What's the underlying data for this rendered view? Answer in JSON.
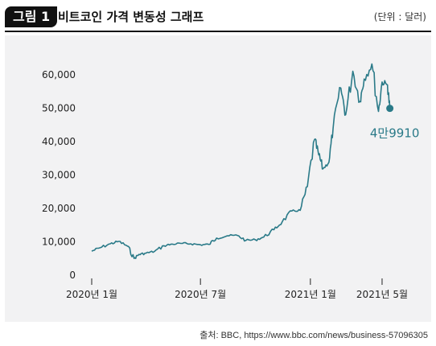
{
  "header": {
    "figure_label": "그림 1",
    "title": "비트코인 가격 변동성 그래프",
    "unit_note": "(단위 : 달러)"
  },
  "source": "출처: BBC, https://www.bbc.com/news/business-57096305",
  "colors": {
    "line": "#2a7a88",
    "panel": "#f2f2f3"
  },
  "chart_data": {
    "type": "line",
    "title": "비트코인 가격 변동성 그래프",
    "xlabel": "",
    "ylabel": "",
    "ylim": [
      0,
      65000
    ],
    "y_ticks": [
      0,
      10000,
      20000,
      30000,
      40000,
      50000,
      60000
    ],
    "y_tick_labels": [
      "0",
      "10,000",
      "20,000",
      "30,000",
      "40,000",
      "50,000",
      "60,000"
    ],
    "x_ticks": [
      {
        "x": "2020-01-01",
        "label": "2020년 1월"
      },
      {
        "x": "2020-07-01",
        "label": "2020년 7월"
      },
      {
        "x": "2021-01-01",
        "label": "2021년 1월"
      },
      {
        "x": "2021-05-01",
        "label": "2021년 5월"
      }
    ],
    "grid": false,
    "annotation": {
      "x": "2021-05-14",
      "y": 49910,
      "label": "4만9910"
    },
    "series": [
      {
        "name": "",
        "x": [
          "2020-01-01",
          "2020-01-15",
          "2020-02-01",
          "2020-02-15",
          "2020-03-01",
          "2020-03-12",
          "2020-03-20",
          "2020-04-01",
          "2020-04-15",
          "2020-05-01",
          "2020-05-15",
          "2020-06-01",
          "2020-06-15",
          "2020-07-01",
          "2020-07-15",
          "2020-07-28",
          "2020-08-15",
          "2020-09-01",
          "2020-09-15",
          "2020-10-01",
          "2020-10-15",
          "2020-11-01",
          "2020-11-15",
          "2020-12-01",
          "2020-12-15",
          "2020-12-27",
          "2021-01-08",
          "2021-01-15",
          "2021-01-22",
          "2021-02-01",
          "2021-02-08",
          "2021-02-21",
          "2021-03-01",
          "2021-03-13",
          "2021-03-25",
          "2021-04-01",
          "2021-04-14",
          "2021-04-25",
          "2021-05-01",
          "2021-05-10",
          "2021-05-14"
        ],
        "y": [
          7200,
          8200,
          9400,
          10100,
          8700,
          5000,
          6200,
          6600,
          7100,
          8800,
          9300,
          9500,
          9400,
          9100,
          9200,
          11100,
          11800,
          11900,
          10400,
          10600,
          11400,
          13600,
          16000,
          19200,
          19400,
          26500,
          40600,
          36000,
          31800,
          33800,
          44000,
          56000,
          48000,
          61000,
          52000,
          58700,
          63200,
          49000,
          57800,
          56900,
          49910
        ]
      }
    ]
  }
}
